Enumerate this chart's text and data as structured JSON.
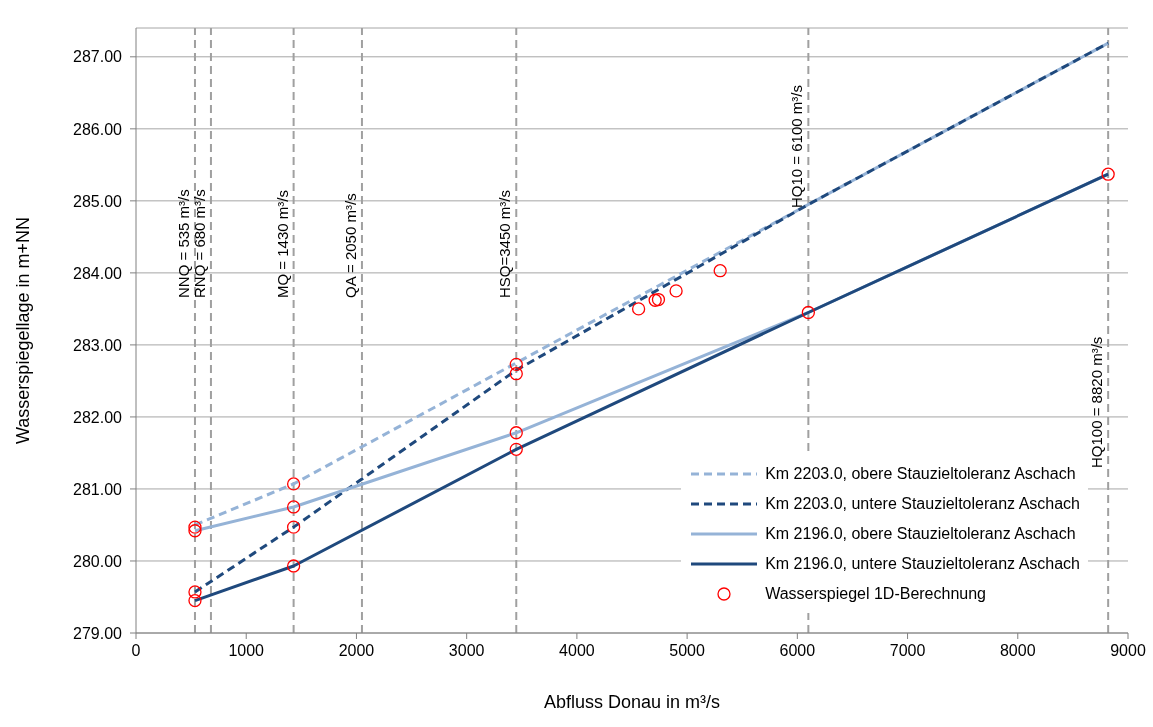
{
  "chart_data": {
    "type": "line",
    "xlabel": "Abfluss  Donau in m³/s",
    "ylabel": "Wasserspiegellage in m+NN",
    "xlim": [
      0,
      9000
    ],
    "xticks": [
      0,
      1000,
      2000,
      3000,
      4000,
      5000,
      6000,
      7000,
      8000,
      9000
    ],
    "ylim": [
      279,
      287.4
    ],
    "yticks": [
      {
        "value": 279,
        "label": "279.00"
      },
      {
        "value": 280,
        "label": "280.00"
      },
      {
        "value": 281,
        "label": "281.00"
      },
      {
        "value": 282,
        "label": "282.00"
      },
      {
        "value": 283,
        "label": "283.00"
      },
      {
        "value": 284,
        "label": "284.00"
      },
      {
        "value": 285,
        "label": "285.00"
      },
      {
        "value": 286,
        "label": "286.00"
      },
      {
        "value": 287,
        "label": "287.00"
      }
    ],
    "grid": "y",
    "legend": "bottom right",
    "series": [
      {
        "name": "Km 2203.0, obere Stauzieltoleranz Aschach",
        "line_style": "dashed",
        "marker": "none",
        "color": "#95b3d7",
        "x": [
          535,
          1430,
          3450,
          6100,
          8820
        ],
        "values": [
          280.5,
          281.07,
          282.75,
          284.95,
          287.19
        ]
      },
      {
        "name": "Km 2203.0, untere Stauzieltoleranz Aschach",
        "line_style": "dashed",
        "marker": "none",
        "color": "#1f497d",
        "x": [
          535,
          1430,
          3450,
          6100,
          8820
        ],
        "values": [
          279.57,
          280.47,
          282.65,
          284.95,
          287.19
        ]
      },
      {
        "name": "Km 2196.0, obere Stauzieltoleranz Aschach",
        "line_style": "solid",
        "marker": "none",
        "color": "#95b3d7",
        "x": [
          535,
          1430,
          3450,
          6100,
          8820
        ],
        "values": [
          280.42,
          280.75,
          281.78,
          283.45,
          285.37
        ]
      },
      {
        "name": "Km 2196.0, untere Stauzieltoleranz Aschach",
        "line_style": "solid",
        "marker": "none",
        "color": "#1f497d",
        "x": [
          535,
          1430,
          3450,
          6100,
          8820
        ],
        "values": [
          279.45,
          279.93,
          281.55,
          283.45,
          285.37
        ]
      },
      {
        "name": "Wasserspiegel 1D-Berechnung",
        "type": "scatter",
        "marker": "circle",
        "color": "#ff0000",
        "x": [
          535,
          535,
          535,
          535,
          1430,
          1430,
          1430,
          1430,
          3450,
          3450,
          3450,
          3450,
          4560,
          4710,
          4740,
          4900,
          5300,
          6100,
          8820
        ],
        "values": [
          280.47,
          280.42,
          279.57,
          279.45,
          281.07,
          280.75,
          280.47,
          279.93,
          282.73,
          282.6,
          281.78,
          281.55,
          283.5,
          283.62,
          283.63,
          283.75,
          284.03,
          283.45,
          285.37
        ]
      }
    ],
    "ref_lines": [
      {
        "axis": "x",
        "value": 535,
        "label": "NNQ = 535 m³/s",
        "color": "#a0a0a0",
        "line_style": "dashed"
      },
      {
        "axis": "x",
        "value": 680,
        "label": "RNQ = 680 m³/s",
        "color": "#a0a0a0",
        "line_style": "dashed"
      },
      {
        "axis": "x",
        "value": 1430,
        "label": "MQ = 1430 m³/s",
        "color": "#a0a0a0",
        "line_style": "dashed"
      },
      {
        "axis": "x",
        "value": 2050,
        "label": "QA = 2050 m³/s",
        "color": "#a0a0a0",
        "line_style": "dashed"
      },
      {
        "axis": "x",
        "value": 3450,
        "label": "HSQ=3450 m³/s",
        "color": "#a0a0a0",
        "line_style": "dashed"
      },
      {
        "axis": "x",
        "value": 6100,
        "label": "HQ10 = 6100 m³/s",
        "color": "#a0a0a0",
        "line_style": "dashed"
      },
      {
        "axis": "x",
        "value": 8820,
        "label": "HQ100 = 8820 m³/s",
        "color": "#a0a0a0",
        "line_style": "dashed"
      }
    ]
  }
}
